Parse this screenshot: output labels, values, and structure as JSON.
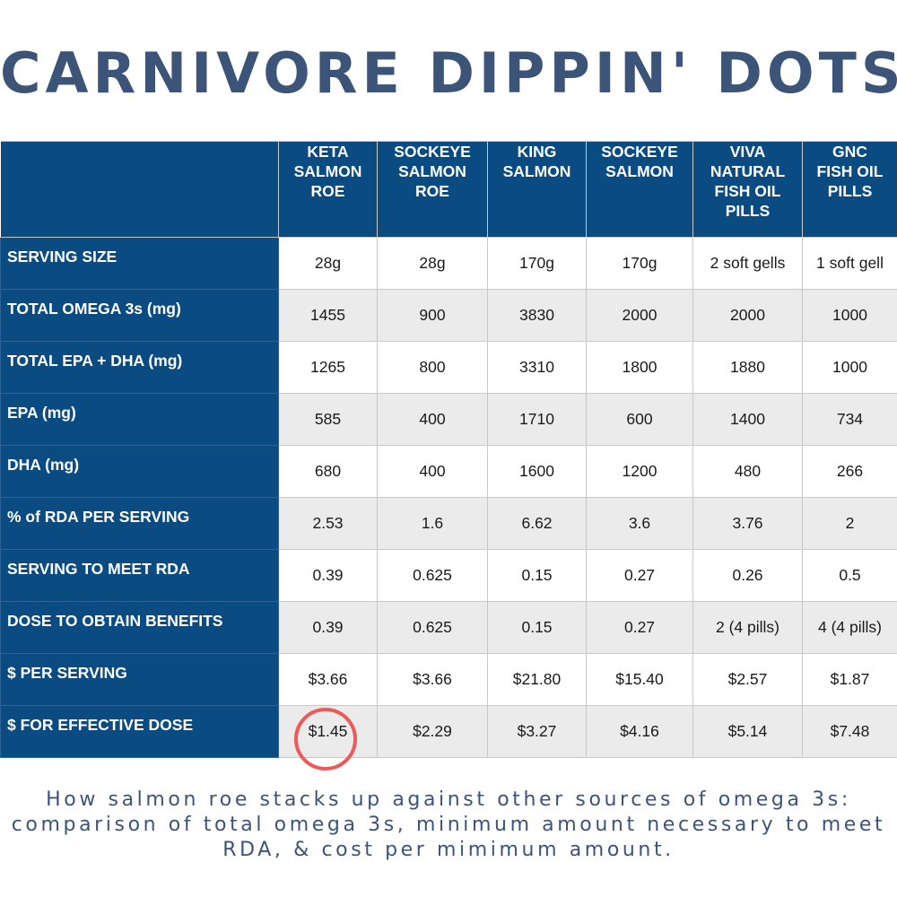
{
  "title": "CARNIVORE DIPPIN' DOTS",
  "table": {
    "columns": [
      [
        "KETA",
        "SALMON",
        "ROE"
      ],
      [
        "SOCKEYE",
        "SALMON",
        "ROE"
      ],
      [
        "KING",
        "SALMON"
      ],
      [
        "SOCKEYE",
        "SALMON"
      ],
      [
        "VIVA",
        "NATURAL",
        "FISH OIL",
        "PILLS"
      ],
      [
        "GNC",
        "FISH OIL",
        "PILLS"
      ]
    ],
    "rows": [
      {
        "label": "SERVING SIZE",
        "values": [
          "28g",
          "28g",
          "170g",
          "170g",
          "2 soft gells",
          "1 soft gell"
        ]
      },
      {
        "label": "TOTAL OMEGA 3s (mg)",
        "values": [
          "1455",
          "900",
          "3830",
          "2000",
          "2000",
          "1000"
        ]
      },
      {
        "label": "TOTAL EPA + DHA (mg)",
        "values": [
          "1265",
          "800",
          "3310",
          "1800",
          "1880",
          "1000"
        ]
      },
      {
        "label": "EPA (mg)",
        "values": [
          "585",
          "400",
          "1710",
          "600",
          "1400",
          "734"
        ]
      },
      {
        "label": "DHA (mg)",
        "values": [
          "680",
          "400",
          "1600",
          "1200",
          "480",
          "266"
        ]
      },
      {
        "label": "% of RDA PER SERVING",
        "values": [
          "2.53",
          "1.6",
          "6.62",
          "3.6",
          "3.76",
          "2"
        ]
      },
      {
        "label": "SERVING TO MEET RDA",
        "values": [
          "0.39",
          "0.625",
          "0.15",
          "0.27",
          "0.26",
          "0.5"
        ]
      },
      {
        "label": "DOSE TO OBTAIN BENEFITS",
        "values": [
          "0.39",
          "0.625",
          "0.15",
          "0.27",
          "2 (4 pills)",
          "4 (4 pills)"
        ]
      },
      {
        "label": "$ PER SERVING",
        "values": [
          "$3.66",
          "$3.66",
          "$21.80",
          "$15.40",
          "$2.57",
          "$1.87"
        ]
      },
      {
        "label": "$ FOR EFFECTIVE DOSE",
        "values": [
          "$1.45",
          "$2.29",
          "$3.27",
          "$4.16",
          "$5.14",
          "$7.48"
        ]
      }
    ],
    "highlight": {
      "row": 9,
      "col": 0,
      "color": "#ec5a5a"
    }
  },
  "caption": {
    "lines": [
      "How salmon roe stacks up against other sources of omega 3s:",
      "comparison of total omega 3s, minimum amount necessary to meet",
      "RDA, & cost per mimimum amount."
    ]
  },
  "colors": {
    "header_bg": "#0a4b82",
    "title": "#3b5478",
    "row_alt": "#ebebeb"
  }
}
